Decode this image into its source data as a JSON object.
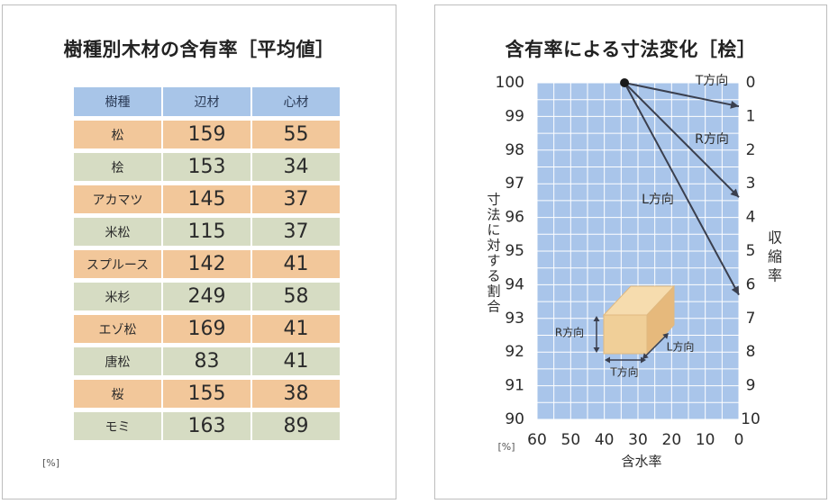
{
  "left_panel": {
    "title": "樹種別木材の含有率［平均値］",
    "unit": "[%]",
    "headers": [
      "樹種",
      "辺材",
      "心材"
    ],
    "rows": [
      {
        "species": "松",
        "sapwood": "159",
        "heartwood": "55",
        "tone": "orange"
      },
      {
        "species": "桧",
        "sapwood": "153",
        "heartwood": "34",
        "tone": "green"
      },
      {
        "species": "アカマツ",
        "sapwood": "145",
        "heartwood": "37",
        "tone": "orange"
      },
      {
        "species": "米松",
        "sapwood": "115",
        "heartwood": "37",
        "tone": "green"
      },
      {
        "species": "スプルース",
        "sapwood": "142",
        "heartwood": "41",
        "tone": "orange"
      },
      {
        "species": "米杉",
        "sapwood": "249",
        "heartwood": "58",
        "tone": "green"
      },
      {
        "species": "エゾ松",
        "sapwood": "169",
        "heartwood": "41",
        "tone": "orange"
      },
      {
        "species": "唐松",
        "sapwood": "83",
        "heartwood": "41",
        "tone": "green"
      },
      {
        "species": "桜",
        "sapwood": "155",
        "heartwood": "38",
        "tone": "orange"
      },
      {
        "species": "モミ",
        "sapwood": "163",
        "heartwood": "89",
        "tone": "green"
      }
    ]
  },
  "colors": {
    "plot_bg": "#a9c5ea",
    "grid": "#ffffff",
    "line": "#3a3f4e",
    "row_orange": "#f2c79a",
    "row_green": "#d6dcc3",
    "header": "#a8c5e8",
    "block_top": "#f6dcae",
    "block_front": "#f0cf98",
    "block_side": "#e6b97c"
  },
  "chart_data": {
    "type": "line",
    "title": "含有率による寸法変化［桧］",
    "xlabel": "含水率",
    "ylabel_left": "寸法に対する割合",
    "ylabel_right": "収縮率",
    "unit": "[%]",
    "xlim": [
      60,
      0
    ],
    "xticks": [
      60,
      50,
      40,
      30,
      20,
      10,
      0
    ],
    "ylim_left": [
      90,
      100
    ],
    "yticks_left": [
      100,
      99,
      98,
      97,
      96,
      95,
      94,
      93,
      92,
      91,
      90
    ],
    "ylim_right": [
      10,
      0
    ],
    "yticks_right": [
      0,
      1,
      2,
      3,
      4,
      5,
      6,
      7,
      8,
      9,
      10
    ],
    "start_point": {
      "x": 34,
      "y": 100
    },
    "series": [
      {
        "name": "T方向",
        "points": [
          {
            "x": 34,
            "y": 100
          },
          {
            "x": 0,
            "y": 99.3
          }
        ]
      },
      {
        "name": "R方向",
        "points": [
          {
            "x": 34,
            "y": 100
          },
          {
            "x": 0,
            "y": 96.6
          }
        ]
      },
      {
        "name": "L方向",
        "points": [
          {
            "x": 34,
            "y": 100
          },
          {
            "x": 0,
            "y": 93.7
          }
        ]
      }
    ],
    "diagram_labels": {
      "r": "R方向",
      "t": "T方向",
      "l": "L方向"
    }
  }
}
